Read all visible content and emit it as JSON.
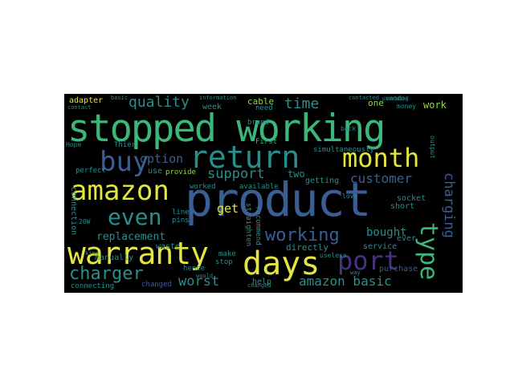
{
  "palette": {
    "background": "#000000",
    "page": "#ffffff",
    "green": "#3bb77a",
    "teal": "#2a8e8c",
    "blue": "#3a5e93",
    "yellow": "#e3e541",
    "lime": "#8fd44a",
    "purple": "#46337e"
  },
  "words": [
    {
      "text": "stopped working",
      "color": "#3bb77a"
    },
    {
      "text": "product",
      "color": "#3a5e93"
    },
    {
      "text": "return",
      "color": "#2a8e8c"
    },
    {
      "text": "warranty",
      "color": "#e3e541"
    },
    {
      "text": "days",
      "color": "#e3e541"
    },
    {
      "text": "amazon",
      "color": "#e3e541"
    },
    {
      "text": "month",
      "color": "#e3e541"
    },
    {
      "text": "buy",
      "color": "#3a5e93"
    },
    {
      "text": "port",
      "color": "#46337e"
    },
    {
      "text": "even",
      "color": "#2a8e8c"
    },
    {
      "text": "type",
      "color": "#3bb77a"
    },
    {
      "text": "charger",
      "color": "#2a8e8c"
    },
    {
      "text": "quality",
      "color": "#2a8e8c"
    },
    {
      "text": "working",
      "color": "#3a5e93"
    },
    {
      "text": "time",
      "color": "#2a8e8c"
    },
    {
      "text": "support",
      "color": "#2a8e8c"
    },
    {
      "text": "option",
      "color": "#3a5e93"
    },
    {
      "text": "customer",
      "color": "#3a5e93"
    },
    {
      "text": "charging",
      "color": "#3a5e93"
    },
    {
      "text": "bought",
      "color": "#2a8e8c"
    },
    {
      "text": "amazon basic",
      "color": "#2a8e8c"
    },
    {
      "text": "worst",
      "color": "#2a8e8c"
    },
    {
      "text": "replacement",
      "color": "#2a8e8c"
    },
    {
      "text": "get",
      "color": "#e3e541"
    },
    {
      "text": "work",
      "color": "#8fd44a"
    },
    {
      "text": "adapter",
      "color": "#e3e541"
    },
    {
      "text": "cable",
      "color": "#8fd44a"
    },
    {
      "text": "one",
      "color": "#8fd44a"
    },
    {
      "text": "week",
      "color": "#2a8e8c"
    },
    {
      "text": "brand",
      "color": "#2a8e8c"
    },
    {
      "text": "two",
      "color": "#2a8e8c"
    },
    {
      "text": "use",
      "color": "#2a8e8c"
    },
    {
      "text": "provide",
      "color": "#8fd44a"
    },
    {
      "text": "need",
      "color": "#2a8e8c"
    },
    {
      "text": "First",
      "color": "#3bb77a"
    },
    {
      "text": "getting",
      "color": "#2a8e8c"
    },
    {
      "text": "directly",
      "color": "#2a8e8c"
    },
    {
      "text": "help",
      "color": "#2a8e8c"
    },
    {
      "text": "make",
      "color": "#2a8e8c"
    },
    {
      "text": "stop",
      "color": "#2a8e8c"
    },
    {
      "text": "service",
      "color": "#2a8e8c"
    },
    {
      "text": "socket",
      "color": "#2a8e8c"
    },
    {
      "text": "short",
      "color": "#2a8e8c"
    },
    {
      "text": "ever",
      "color": "#2a8e8c"
    },
    {
      "text": "purchase",
      "color": "#3a5e93"
    },
    {
      "text": "connection",
      "color": "#2a8e8c"
    },
    {
      "text": "connecting",
      "color": "#2a8e8c"
    },
    {
      "text": "changed",
      "color": "#3a5e93"
    },
    {
      "text": "hence",
      "color": "#2a8e8c"
    },
    {
      "text": "waste",
      "color": "#2a8e8c"
    },
    {
      "text": "manually",
      "color": "#2a8e8c"
    },
    {
      "text": "line",
      "color": "#2a8e8c"
    },
    {
      "text": "pins",
      "color": "#2a8e8c"
    },
    {
      "text": "straighten",
      "color": "#2a8e8c"
    },
    {
      "text": "recommend",
      "color": "#2a8e8c"
    },
    {
      "text": "worked",
      "color": "#2a8e8c"
    },
    {
      "text": "available",
      "color": "#2a8e8c"
    },
    {
      "text": "simultaneously",
      "color": "#2a8e8c"
    },
    {
      "text": "Thier",
      "color": "#2a8e8c"
    },
    {
      "text": "perfect",
      "color": "#2a8e8c"
    },
    {
      "text": "money",
      "color": "#2a8e8c"
    },
    {
      "text": "vendor",
      "color": "#2a8e8c"
    },
    {
      "text": "output",
      "color": "#2a8e8c"
    },
    {
      "text": "useless",
      "color": "#2a8e8c"
    },
    {
      "text": "back",
      "color": "#2a8e8c"
    },
    {
      "text": "love",
      "color": "#2a8e8c"
    },
    {
      "text": "Hope",
      "color": "#2a8e8c"
    },
    {
      "text": "20W",
      "color": "#2a8e8c"
    },
    {
      "text": "kind",
      "color": "#2a8e8c"
    },
    {
      "text": "information",
      "color": "#2a8e8c"
    },
    {
      "text": "basic",
      "color": "#2a8e8c"
    },
    {
      "text": "contacted",
      "color": "#2a8e8c"
    },
    {
      "text": "contact",
      "color": "#2a8e8c"
    },
    {
      "text": "would",
      "color": "#2a8e8c"
    },
    {
      "text": "changed",
      "color": "#2a8e8c"
    },
    {
      "text": "way",
      "color": "#2a8e8c"
    },
    {
      "text": "providing",
      "color": "#2a8e8c"
    }
  ]
}
